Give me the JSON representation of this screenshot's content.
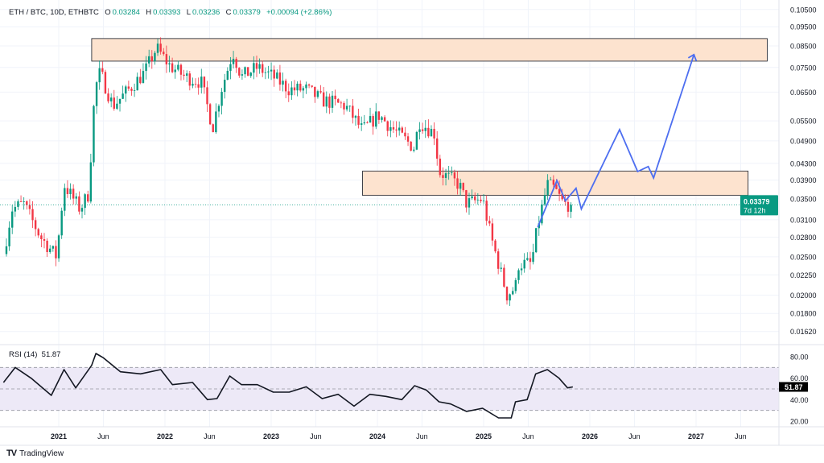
{
  "header": {
    "symbol": "ETH / BTC, 10D, ETHBTC",
    "o_label": "O",
    "open": "0.03284",
    "h_label": "H",
    "high": "0.03393",
    "l_label": "L",
    "low": "0.03236",
    "c_label": "C",
    "close": "0.03379",
    "change": "+0.00094 (+2.86%)"
  },
  "rsi_legend": {
    "name": "RSI (14)",
    "value": "51.87"
  },
  "branding": "TradingView",
  "colors": {
    "up": "#089981",
    "down": "#F23645",
    "projection": "#4d6ef0",
    "zone_fill": "#fde3cf",
    "rsi_band": "#ede9f7"
  },
  "chart_data": [
    {
      "type": "candlestick",
      "title": "ETH / BTC, 10D",
      "scale": "log",
      "ylim": [
        0.0155,
        0.108
      ],
      "xlim": [
        2020.45,
        2027.8
      ],
      "y_ticks": [
        "0.10500",
        "0.09500",
        "0.08500",
        "0.07500",
        "0.06500",
        "0.05500",
        "0.04900",
        "0.04300",
        "0.03900",
        "0.03500",
        "0.03100",
        "0.02800",
        "0.02500",
        "0.02250",
        "0.02000",
        "0.01800",
        "0.01620"
      ],
      "x_ticks": [
        {
          "t": 2021.0,
          "label": "2021"
        },
        {
          "t": 2021.42,
          "label": "Jun"
        },
        {
          "t": 2022.0,
          "label": "2022"
        },
        {
          "t": 2022.42,
          "label": "Jun"
        },
        {
          "t": 2023.0,
          "label": "2023"
        },
        {
          "t": 2023.42,
          "label": "Jun"
        },
        {
          "t": 2024.0,
          "label": "2024"
        },
        {
          "t": 2024.42,
          "label": "Jun"
        },
        {
          "t": 2025.0,
          "label": "2025"
        },
        {
          "t": 2025.42,
          "label": "Jun"
        },
        {
          "t": 2026.0,
          "label": "2026"
        },
        {
          "t": 2026.42,
          "label": "Jun"
        },
        {
          "t": 2027.0,
          "label": "2027"
        },
        {
          "t": 2027.42,
          "label": "Jun"
        }
      ],
      "price_path": [
        [
          2020.48,
          0.0254
        ],
        [
          2020.56,
          0.033
        ],
        [
          2020.67,
          0.034
        ],
        [
          2020.83,
          0.028
        ],
        [
          2020.98,
          0.025
        ],
        [
          2021.05,
          0.038
        ],
        [
          2021.2,
          0.033
        ],
        [
          2021.28,
          0.036
        ],
        [
          2021.34,
          0.066
        ],
        [
          2021.39,
          0.073
        ],
        [
          2021.51,
          0.06
        ],
        [
          2021.66,
          0.066
        ],
        [
          2021.81,
          0.073
        ],
        [
          2021.92,
          0.084
        ],
        [
          2022.04,
          0.076
        ],
        [
          2022.19,
          0.071
        ],
        [
          2022.34,
          0.069
        ],
        [
          2022.45,
          0.053
        ],
        [
          2022.53,
          0.066
        ],
        [
          2022.64,
          0.082
        ],
        [
          2022.72,
          0.071
        ],
        [
          2022.87,
          0.075
        ],
        [
          2023.02,
          0.071
        ],
        [
          2023.17,
          0.066
        ],
        [
          2023.33,
          0.066
        ],
        [
          2023.48,
          0.062
        ],
        [
          2023.7,
          0.06
        ],
        [
          2023.86,
          0.052
        ],
        [
          2024.01,
          0.057
        ],
        [
          2024.16,
          0.052
        ],
        [
          2024.35,
          0.047
        ],
        [
          2024.39,
          0.055
        ],
        [
          2024.54,
          0.051
        ],
        [
          2024.58,
          0.041
        ],
        [
          2024.77,
          0.038
        ],
        [
          2024.84,
          0.034
        ],
        [
          2024.99,
          0.035
        ],
        [
          2025.07,
          0.028
        ],
        [
          2025.14,
          0.024
        ],
        [
          2025.22,
          0.02
        ],
        [
          2025.3,
          0.021
        ],
        [
          2025.33,
          0.024
        ],
        [
          2025.45,
          0.024
        ],
        [
          2025.51,
          0.03
        ],
        [
          2025.6,
          0.038
        ],
        [
          2025.67,
          0.037
        ],
        [
          2025.75,
          0.034
        ],
        [
          2025.84,
          0.03379
        ]
      ],
      "last_price": {
        "value": 0.03379,
        "label": "0.03379",
        "countdown": "7d 12h"
      },
      "zones": [
        {
          "t0": 2021.31,
          "t1": 2027.67,
          "low": 0.0778,
          "high": 0.0887
        },
        {
          "t0": 2023.86,
          "t1": 2027.49,
          "low": 0.0357,
          "high": 0.0411
        }
      ],
      "projection": [
        [
          2025.51,
          0.0297
        ],
        [
          2025.69,
          0.0389
        ],
        [
          2025.77,
          0.0346
        ],
        [
          2025.87,
          0.0372
        ],
        [
          2025.92,
          0.033
        ],
        [
          2026.28,
          0.0523
        ],
        [
          2026.45,
          0.041
        ],
        [
          2026.55,
          0.0422
        ],
        [
          2026.6,
          0.0395
        ],
        [
          2026.98,
          0.0808
        ]
      ]
    },
    {
      "type": "line",
      "title": "RSI (14)",
      "ylim": [
        14,
        86
      ],
      "y_ticks": [
        "80.00",
        "60.00",
        "40.00",
        "20.00"
      ],
      "bands": {
        "upper": 70,
        "middle": 50,
        "lower": 30
      },
      "last_value": "51.87",
      "series": [
        [
          2020.48,
          56
        ],
        [
          2020.59,
          70
        ],
        [
          2020.74,
          60
        ],
        [
          2020.93,
          44
        ],
        [
          2021.05,
          68
        ],
        [
          2021.16,
          51
        ],
        [
          2021.31,
          72
        ],
        [
          2021.35,
          83
        ],
        [
          2021.42,
          79
        ],
        [
          2021.58,
          66
        ],
        [
          2021.77,
          64
        ],
        [
          2021.96,
          68
        ],
        [
          2022.07,
          54
        ],
        [
          2022.26,
          56
        ],
        [
          2022.4,
          40
        ],
        [
          2022.49,
          41
        ],
        [
          2022.61,
          62
        ],
        [
          2022.72,
          54
        ],
        [
          2022.87,
          54
        ],
        [
          2023.02,
          47
        ],
        [
          2023.17,
          47
        ],
        [
          2023.33,
          52
        ],
        [
          2023.48,
          41
        ],
        [
          2023.63,
          45
        ],
        [
          2023.78,
          34
        ],
        [
          2023.93,
          45
        ],
        [
          2024.08,
          43
        ],
        [
          2024.23,
          40
        ],
        [
          2024.35,
          53
        ],
        [
          2024.46,
          49
        ],
        [
          2024.58,
          38
        ],
        [
          2024.69,
          36
        ],
        [
          2024.84,
          29
        ],
        [
          2024.99,
          32
        ],
        [
          2025.14,
          23
        ],
        [
          2025.26,
          23
        ],
        [
          2025.3,
          38
        ],
        [
          2025.41,
          40
        ],
        [
          2025.49,
          64
        ],
        [
          2025.6,
          68
        ],
        [
          2025.71,
          60
        ],
        [
          2025.79,
          51
        ],
        [
          2025.84,
          51.87
        ]
      ]
    }
  ]
}
